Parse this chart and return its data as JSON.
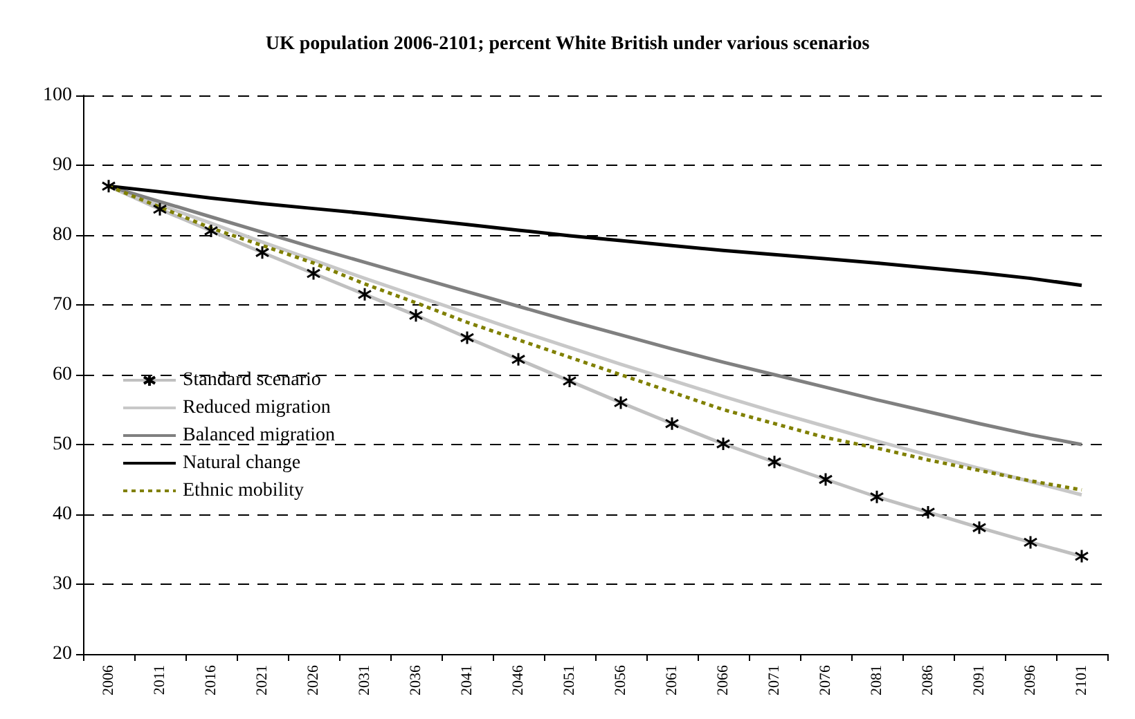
{
  "chart_data": {
    "type": "line",
    "title": "UK population 2006-2101; percent White British under various scenarios",
    "categories": [
      "2006",
      "2011",
      "2016",
      "2021",
      "2026",
      "2031",
      "2036",
      "2041",
      "2046",
      "2051",
      "2056",
      "2061",
      "2066",
      "2071",
      "2076",
      "2081",
      "2086",
      "2091",
      "2096",
      "2101"
    ],
    "series": [
      {
        "name": "Standard scenario",
        "color": "#c0c0c0",
        "marker": "star",
        "line_style": "solid",
        "values": [
          87,
          83.7,
          80.6,
          77.5,
          74.5,
          71.5,
          68.5,
          65.3,
          62.2,
          59.1,
          56,
          53,
          50.1,
          47.5,
          45,
          42.5,
          40.3,
          38.1,
          36,
          34
        ]
      },
      {
        "name": "Reduced migration",
        "color": "#c8c8c8",
        "marker": "none",
        "line_style": "solid",
        "values": [
          87,
          84.3,
          81.7,
          79,
          76.4,
          73.8,
          71.3,
          68.8,
          66.3,
          63.9,
          61.5,
          59.2,
          56.9,
          54.7,
          52.6,
          50.5,
          48.5,
          46.6,
          44.7,
          42.8
        ]
      },
      {
        "name": "Balanced migration",
        "color": "#808080",
        "marker": "none",
        "line_style": "solid",
        "values": [
          87,
          84.8,
          82.6,
          80.4,
          78.2,
          76.1,
          74,
          71.9,
          69.8,
          67.7,
          65.7,
          63.7,
          61.8,
          60,
          58.2,
          56.4,
          54.7,
          53,
          51.4,
          50
        ]
      },
      {
        "name": "Natural change",
        "color": "#000000",
        "marker": "none",
        "line_style": "solid",
        "values": [
          87,
          86.2,
          85.3,
          84.5,
          83.8,
          83.1,
          82.3,
          81.5,
          80.7,
          79.9,
          79.2,
          78.5,
          77.8,
          77.2,
          76.6,
          76,
          75.3,
          74.6,
          73.8,
          72.8
        ]
      },
      {
        "name": "Ethnic mobility",
        "color": "#808000",
        "marker": "none",
        "line_style": "dotted",
        "values": [
          87,
          84,
          81,
          78.5,
          76,
          73,
          70.3,
          67.5,
          65,
          62.5,
          60,
          57.5,
          55,
          53,
          51,
          49.5,
          47.8,
          46.3,
          44.8,
          43.5
        ]
      }
    ],
    "ylim": [
      20,
      100
    ],
    "yticks": [
      20,
      30,
      40,
      50,
      60,
      70,
      80,
      90,
      100
    ],
    "grid": "y",
    "legend": "left"
  }
}
